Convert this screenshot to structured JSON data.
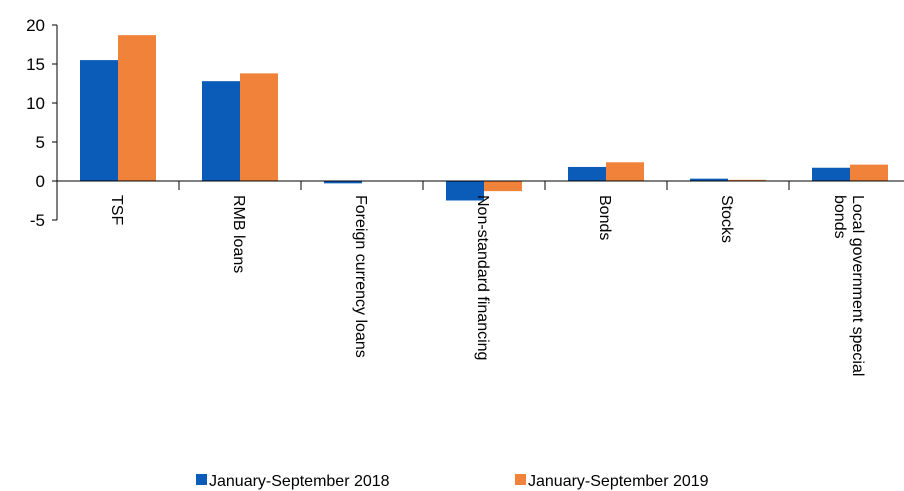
{
  "chart_data": {
    "type": "bar",
    "categories": [
      "TSF",
      "RMB loans",
      "Foreign currency loans",
      "Non-standard financing",
      "Bonds",
      "Stocks",
      "Local government special bonds"
    ],
    "series": [
      {
        "name": "January-September 2018",
        "color": "#0a5cb8",
        "values": [
          15.5,
          12.8,
          -0.3,
          -2.5,
          1.8,
          0.3,
          1.7
        ]
      },
      {
        "name": "January-September 2019",
        "color": "#f0823a",
        "values": [
          18.7,
          13.8,
          0,
          -1.3,
          2.4,
          0.15,
          2.1
        ]
      }
    ],
    "ylim": [
      -5,
      20
    ],
    "yticks": [
      -5,
      0,
      5,
      10,
      15,
      20
    ],
    "legend": "bottom"
  }
}
